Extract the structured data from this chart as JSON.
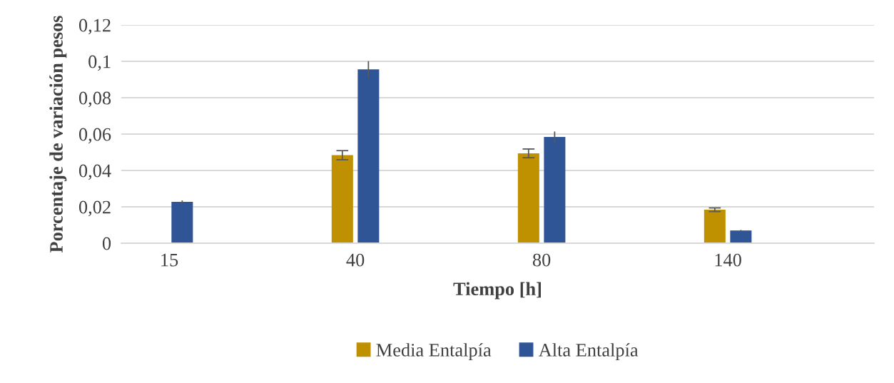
{
  "chart_data": {
    "type": "bar",
    "xlabel": "Tiempo [h]",
    "ylabel": "Porcentaje de variación pesos",
    "categories": [
      "15",
      "40",
      "80",
      "140"
    ],
    "series": [
      {
        "name": "Media Entalpía",
        "color": "#bf9000",
        "values": [
          0,
          0.0484,
          0.0494,
          0.0184
        ],
        "errors": [
          null,
          0.0025,
          0.0024,
          0.001
        ]
      },
      {
        "name": "Alta Entalpía",
        "color": "#2f5597",
        "values": [
          0.0227,
          0.0956,
          0.0584,
          0.007
        ],
        "errors": [
          0.0008,
          0.0045,
          0.003,
          0.0003
        ]
      }
    ],
    "ylim": [
      0,
      0.12
    ],
    "yticks": [
      {
        "value": 0,
        "label": "0"
      },
      {
        "value": 0.02,
        "label": "0,02"
      },
      {
        "value": 0.04,
        "label": "0,04"
      },
      {
        "value": 0.06,
        "label": "0,06"
      },
      {
        "value": 0.08,
        "label": "0,08"
      },
      {
        "value": 0.1,
        "label": "0,1"
      },
      {
        "value": 0.12,
        "label": "0,12"
      }
    ],
    "grid": "y",
    "legend": "bottom"
  }
}
